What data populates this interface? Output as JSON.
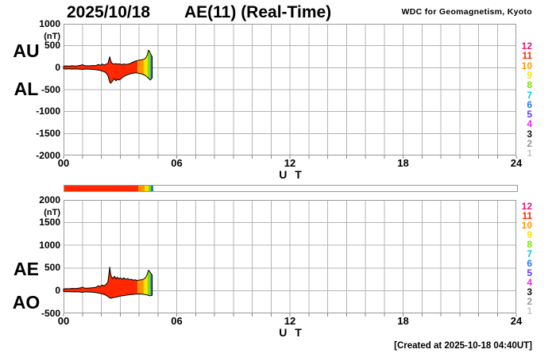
{
  "header": {
    "date": "2025/10/18",
    "title": "AE(11) (Real-Time)",
    "credit": "WDC for Geomagnetism, Kyoto"
  },
  "footer": {
    "created": "[Created at 2025-10-18 04:40UT]"
  },
  "axis": {
    "xlabel": "U T",
    "unit": "(nT)"
  },
  "colors": {
    "grid": "#b4b4b4",
    "border": "#999999",
    "tick": "#888888",
    "outline": "#000000",
    "background": "#ffffff"
  },
  "legend": {
    "description": "number of stations, color coded",
    "items": [
      {
        "label": "12",
        "color": "#e61478"
      },
      {
        "label": "11",
        "color": "#ff2800"
      },
      {
        "label": "10",
        "color": "#ff9600"
      },
      {
        "label": "9",
        "color": "#ffe100"
      },
      {
        "label": "8",
        "color": "#82e000"
      },
      {
        "label": "7",
        "color": "#00d2dc"
      },
      {
        "label": "6",
        "color": "#2878f0"
      },
      {
        "label": "5",
        "color": "#5a3cf5"
      },
      {
        "label": "4",
        "color": "#eb28eb"
      },
      {
        "label": "3",
        "color": "#141414"
      },
      {
        "label": "2",
        "color": "#969696"
      },
      {
        "label": "1",
        "color": "#c8c8c8"
      }
    ]
  },
  "station_segments": [
    {
      "from": 0.0,
      "to": 3.92,
      "stations": 11,
      "color": "#ff2800"
    },
    {
      "from": 3.92,
      "to": 4.25,
      "stations": 10,
      "color": "#ff9600"
    },
    {
      "from": 4.25,
      "to": 4.46,
      "stations": 9,
      "color": "#ffe100"
    },
    {
      "from": 4.46,
      "to": 4.61,
      "stations": 8,
      "color": "#82e000"
    },
    {
      "from": 4.61,
      "to": 4.7,
      "stations": 6,
      "color": "#2878f0"
    }
  ],
  "availability_bar": {
    "range_hours": 24
  },
  "chart_data": [
    {
      "type": "area",
      "name": "AU-AL panel",
      "left_labels": [
        "AU",
        "AL"
      ],
      "xlabel": "U T",
      "unit": "(nT)",
      "xlim": [
        0,
        24
      ],
      "ylim": [
        -2000,
        1000
      ],
      "yticks": {
        "values": [
          1000,
          500,
          0,
          -500,
          -1000,
          -1500,
          -2000
        ],
        "labels": [
          "1000",
          "500",
          "0",
          "-500",
          "-1000",
          "-1500",
          "-2000"
        ]
      },
      "xticks": {
        "values": [
          0,
          6,
          12,
          18,
          24
        ],
        "labels": [
          "00",
          "06",
          "12",
          "18",
          "24"
        ]
      },
      "grid": "hourly vertical, 500 nT horizontal",
      "x_hours": [
        0,
        0.15,
        0.3,
        0.45,
        0.6,
        0.75,
        0.9,
        1.0,
        1.1,
        1.25,
        1.4,
        1.55,
        1.7,
        1.85,
        1.95,
        2.05,
        2.15,
        2.25,
        2.35,
        2.45,
        2.5,
        2.55,
        2.62,
        2.7,
        2.78,
        2.85,
        2.92,
        3.0,
        3.1,
        3.2,
        3.3,
        3.4,
        3.5,
        3.6,
        3.7,
        3.8,
        3.9,
        4.0,
        4.1,
        4.2,
        4.3,
        4.38,
        4.45,
        4.5,
        4.55,
        4.6,
        4.65,
        4.7
      ],
      "series": [
        {
          "name": "AU",
          "values": [
            35,
            40,
            35,
            45,
            38,
            42,
            55,
            70,
            48,
            42,
            45,
            50,
            46,
            75,
            55,
            85,
            60,
            80,
            95,
            250,
            160,
            110,
            90,
            82,
            95,
            78,
            88,
            80,
            72,
            85,
            75,
            80,
            90,
            110,
            130,
            150,
            160,
            170,
            178,
            188,
            200,
            240,
            300,
            400,
            380,
            330,
            285,
            245
          ]
        },
        {
          "name": "AL",
          "values": [
            -25,
            -30,
            -25,
            -32,
            -27,
            -30,
            -35,
            -40,
            -32,
            -30,
            -34,
            -38,
            -45,
            -55,
            -65,
            -75,
            -95,
            -115,
            -180,
            -330,
            -355,
            -330,
            -290,
            -250,
            -300,
            -265,
            -280,
            -270,
            -230,
            -200,
            -175,
            -160,
            -145,
            -132,
            -122,
            -116,
            -120,
            -128,
            -138,
            -150,
            -170,
            -195,
            -220,
            -240,
            -262,
            -280,
            -258,
            -232
          ]
        }
      ]
    },
    {
      "type": "area",
      "name": "AE-AO panel",
      "left_labels": [
        "AE",
        "AO"
      ],
      "xlabel": "U T",
      "unit": "(nT)",
      "xlim": [
        0,
        24
      ],
      "ylim": [
        -500,
        2000
      ],
      "yticks": {
        "values": [
          2000,
          1500,
          1000,
          500,
          0,
          -500
        ],
        "labels": [
          "2000",
          "1500",
          "1000",
          "500",
          "0",
          "-500"
        ]
      },
      "xticks": {
        "values": [
          0,
          6,
          12,
          18,
          24
        ],
        "labels": [
          "00",
          "06",
          "12",
          "18",
          "24"
        ]
      },
      "grid": "hourly vertical, 500 nT horizontal",
      "x_hours": [
        0,
        0.15,
        0.3,
        0.45,
        0.6,
        0.75,
        0.9,
        1.0,
        1.1,
        1.25,
        1.4,
        1.55,
        1.7,
        1.85,
        1.95,
        2.05,
        2.15,
        2.25,
        2.35,
        2.45,
        2.5,
        2.55,
        2.62,
        2.7,
        2.78,
        2.85,
        2.92,
        3.0,
        3.1,
        3.2,
        3.3,
        3.4,
        3.5,
        3.6,
        3.7,
        3.8,
        3.9,
        4.0,
        4.1,
        4.2,
        4.3,
        4.38,
        4.45,
        4.5,
        4.55,
        4.6,
        4.65,
        4.7
      ],
      "series": [
        {
          "name": "AE",
          "values": [
            40,
            45,
            42,
            50,
            46,
            52,
            62,
            78,
            58,
            55,
            60,
            66,
            72,
            108,
            92,
            125,
            105,
            140,
            190,
            520,
            360,
            300,
            270,
            320,
            262,
            300,
            258,
            285,
            255,
            285,
            250,
            268,
            242,
            252,
            230,
            240,
            226,
            232,
            238,
            248,
            268,
            310,
            380,
            450,
            432,
            402,
            372,
            340
          ]
        },
        {
          "name": "AO",
          "values": [
            -20,
            -24,
            -21,
            -26,
            -23,
            -26,
            -30,
            -36,
            -29,
            -28,
            -31,
            -35,
            -42,
            -52,
            -60,
            -70,
            -85,
            -100,
            -130,
            -158,
            -168,
            -162,
            -155,
            -148,
            -142,
            -135,
            -128,
            -120,
            -114,
            -108,
            -100,
            -95,
            -90,
            -85,
            -80,
            -76,
            -74,
            -71,
            -74,
            -79,
            -84,
            -90,
            -96,
            -104,
            -110,
            -114,
            -106,
            -100
          ]
        }
      ]
    }
  ]
}
